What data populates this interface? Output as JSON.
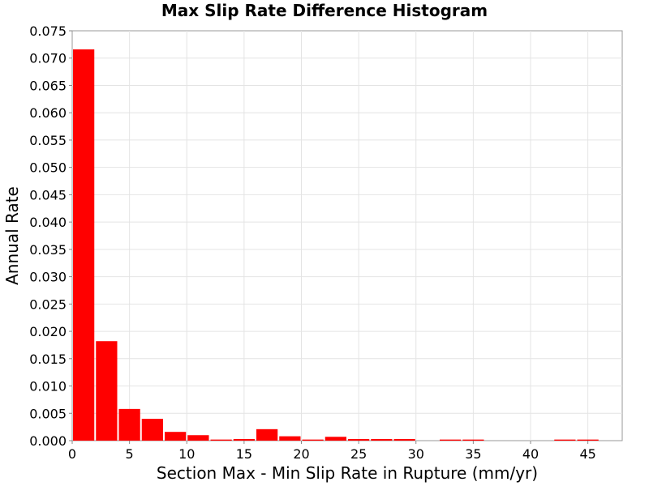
{
  "chart_data": {
    "type": "bar",
    "title": "Max Slip Rate Difference Histogram",
    "xlabel": "Section Max - Min Slip Rate in Rupture (mm/yr)",
    "ylabel": "Annual Rate",
    "xlim": [
      0,
      48
    ],
    "ylim": [
      0,
      0.075
    ],
    "bin_width": 2,
    "x_ticks": [
      0,
      5,
      10,
      15,
      20,
      25,
      30,
      35,
      40,
      45
    ],
    "y_ticks": [
      "0.000",
      "0.005",
      "0.010",
      "0.015",
      "0.020",
      "0.025",
      "0.030",
      "0.035",
      "0.040",
      "0.045",
      "0.050",
      "0.055",
      "0.060",
      "0.065",
      "0.070",
      "0.075"
    ],
    "grid": true,
    "bar_color": "#ff0000",
    "bins": [
      {
        "x_start": 0,
        "value": 0.0716
      },
      {
        "x_start": 2,
        "value": 0.0182
      },
      {
        "x_start": 4,
        "value": 0.0058
      },
      {
        "x_start": 6,
        "value": 0.004
      },
      {
        "x_start": 8,
        "value": 0.0016
      },
      {
        "x_start": 10,
        "value": 0.001
      },
      {
        "x_start": 12,
        "value": 0.0002
      },
      {
        "x_start": 14,
        "value": 0.0003
      },
      {
        "x_start": 16,
        "value": 0.0021
      },
      {
        "x_start": 18,
        "value": 0.0008
      },
      {
        "x_start": 20,
        "value": 0.0002
      },
      {
        "x_start": 22,
        "value": 0.0007
      },
      {
        "x_start": 24,
        "value": 0.0003
      },
      {
        "x_start": 26,
        "value": 0.0003
      },
      {
        "x_start": 28,
        "value": 0.0003
      },
      {
        "x_start": 30,
        "value": 0.0
      },
      {
        "x_start": 32,
        "value": 0.0002
      },
      {
        "x_start": 34,
        "value": 0.0002
      },
      {
        "x_start": 36,
        "value": 0.0
      },
      {
        "x_start": 38,
        "value": 0.0
      },
      {
        "x_start": 40,
        "value": 0.0
      },
      {
        "x_start": 42,
        "value": 0.0002
      },
      {
        "x_start": 44,
        "value": 0.0002
      }
    ]
  }
}
